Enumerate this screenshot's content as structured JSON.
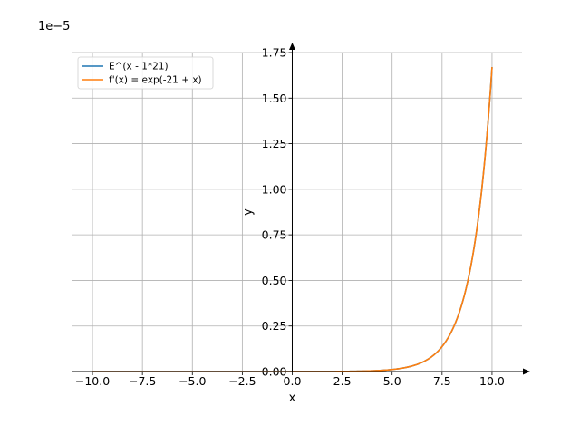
{
  "chart_data": {
    "type": "line",
    "xlabel": "x",
    "ylabel": "y",
    "y_offset_label": "1e−5",
    "xlim": [
      -11,
      11.5
    ],
    "ylim": [
      0,
      1.75
    ],
    "x_ticks": [
      -10.0,
      -7.5,
      -5.0,
      -2.5,
      0.0,
      2.5,
      5.0,
      7.5,
      10.0
    ],
    "x_tick_labels": [
      "−10.0",
      "−7.5",
      "−5.0",
      "−2.5",
      "0.0",
      "2.5",
      "5.0",
      "7.5",
      "10.0"
    ],
    "y_ticks": [
      0.0,
      0.25,
      0.5,
      0.75,
      1.0,
      1.25,
      1.5,
      1.75
    ],
    "y_tick_labels": [
      "0.00",
      "0.25",
      "0.50",
      "0.75",
      "1.00",
      "1.25",
      "1.50",
      "1.75"
    ],
    "grid": true,
    "legend_position": "top-left",
    "x_range": [
      -10,
      10
    ],
    "series": [
      {
        "name": "E^(x - 1*21)",
        "color": "#1f77b4",
        "function": "exp(x - 21) * 1e5",
        "y_scale": "1e-5"
      },
      {
        "name": "f'(x) = exp(-21 + x)",
        "color": "#ff7f0e",
        "function": "exp(-21 + x) * 1e5",
        "y_scale": "1e-5"
      }
    ]
  }
}
